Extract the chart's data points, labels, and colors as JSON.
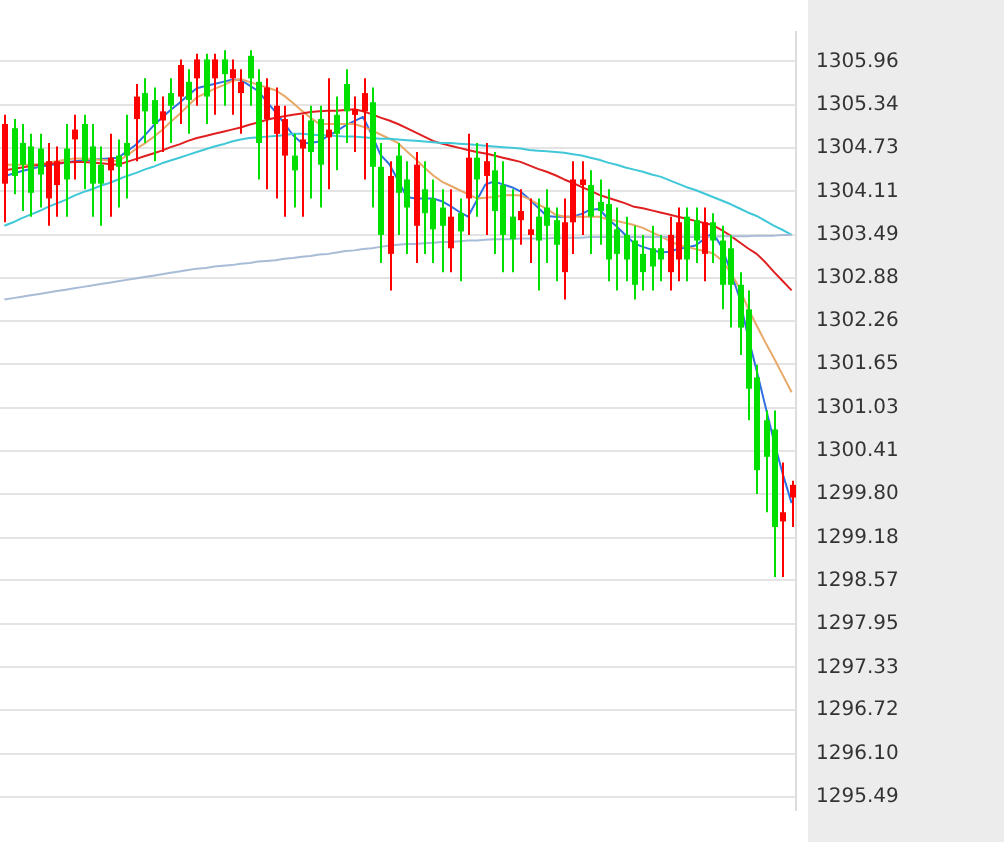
{
  "chart_data": {
    "type": "candlestick",
    "tick_labels": "y",
    "grid": "y",
    "legend": false,
    "ylim": [
      1295.3,
      1306.38
    ],
    "yticks": [
      1295.49,
      {
        "value": 1296.1,
        "label": "1296.10"
      },
      1296.72,
      1297.33,
      1297.95,
      1298.57,
      1299.18,
      {
        "value": 1299.8,
        "label": "1299.80"
      },
      1300.41,
      1301.03,
      1301.65,
      1302.26,
      1302.88,
      1303.49,
      1304.11,
      1304.73,
      1305.34,
      1305.96
    ],
    "categories": [
      null,
      null,
      null,
      null,
      null,
      null,
      null,
      null,
      null,
      null,
      null,
      null,
      null,
      null,
      null,
      null,
      null,
      null,
      null,
      null,
      null,
      null,
      null,
      null,
      null,
      null,
      null,
      null,
      null,
      null,
      null,
      null,
      null,
      null,
      null,
      null,
      null,
      null,
      null,
      null,
      null,
      null,
      null,
      null,
      null,
      null,
      null,
      null,
      null,
      null,
      null,
      null,
      null,
      null,
      null,
      null,
      null,
      null,
      null,
      null,
      null,
      null,
      null,
      null,
      null,
      null,
      null,
      null,
      null,
      null,
      null,
      null,
      null,
      null,
      null,
      null,
      null,
      null,
      null,
      null,
      null,
      null,
      null,
      null,
      null,
      null,
      null,
      null,
      null,
      null,
      null
    ],
    "ohlc": [
      [
        1304.22,
        1305.2,
        1303.67,
        1305.07
      ],
      [
        1305.01,
        1305.14,
        1304.07,
        1304.33
      ],
      [
        1304.8,
        1305.07,
        1303.83,
        1304.49
      ],
      [
        1304.75,
        1304.93,
        1303.75,
        1304.09
      ],
      [
        1304.72,
        1304.93,
        1303.88,
        1304.35
      ],
      [
        1304.01,
        1304.8,
        1303.62,
        1304.54
      ],
      [
        1304.2,
        1304.75,
        1303.75,
        1304.54
      ],
      [
        1304.72,
        1305.07,
        1303.75,
        1304.28
      ],
      [
        1304.85,
        1305.2,
        1304.28,
        1304.99
      ],
      [
        1305.07,
        1305.2,
        1304.14,
        1304.54
      ],
      [
        1304.75,
        1305.07,
        1303.75,
        1304.22
      ],
      [
        1304.49,
        1304.75,
        1303.62,
        1304.22
      ],
      [
        1304.41,
        1304.93,
        1303.75,
        1304.59
      ],
      [
        1304.62,
        1304.85,
        1303.88,
        1304.46
      ],
      [
        1304.8,
        1305.2,
        1304.01,
        1304.62
      ],
      [
        1305.14,
        1305.64,
        1304.54,
        1305.46
      ],
      [
        1305.51,
        1305.72,
        1304.8,
        1305.25
      ],
      [
        1305.41,
        1305.59,
        1304.54,
        1305.07
      ],
      [
        1305.12,
        1305.46,
        1304.67,
        1305.25
      ],
      [
        1305.51,
        1305.72,
        1304.8,
        1305.33
      ],
      [
        1305.46,
        1305.99,
        1305.07,
        1305.91
      ],
      [
        1305.67,
        1305.85,
        1304.93,
        1305.41
      ],
      [
        1305.72,
        1306.07,
        1305.33,
        1305.99
      ],
      [
        1305.99,
        1306.07,
        1305.07,
        1305.46
      ],
      [
        1305.72,
        1306.07,
        1305.2,
        1305.99
      ],
      [
        1305.99,
        1306.12,
        1305.33,
        1305.78
      ],
      [
        1305.72,
        1305.99,
        1305.2,
        1305.85
      ],
      [
        1305.51,
        1305.85,
        1304.93,
        1305.67
      ],
      [
        1306.04,
        1306.12,
        1305.33,
        1305.72
      ],
      [
        1305.67,
        1305.85,
        1304.28,
        1304.8
      ],
      [
        1305.14,
        1305.72,
        1304.14,
        1305.59
      ],
      [
        1304.93,
        1305.59,
        1304.01,
        1305.33
      ],
      [
        1304.62,
        1305.33,
        1303.75,
        1305.14
      ],
      [
        1304.62,
        1304.93,
        1303.88,
        1304.41
      ],
      [
        1304.72,
        1305.2,
        1303.75,
        1304.85
      ],
      [
        1305.12,
        1305.33,
        1304.01,
        1304.67
      ],
      [
        1305.14,
        1305.33,
        1303.88,
        1304.49
      ],
      [
        1304.88,
        1305.72,
        1304.14,
        1304.99
      ],
      [
        1305.2,
        1305.46,
        1304.41,
        1304.93
      ],
      [
        1305.64,
        1305.85,
        1304.8,
        1305.25
      ],
      [
        1305.2,
        1305.46,
        1304.67,
        1305.28
      ],
      [
        1305.25,
        1305.72,
        1304.28,
        1305.51
      ],
      [
        1305.38,
        1305.59,
        1303.88,
        1304.46
      ],
      [
        1304.46,
        1304.8,
        1303.09,
        1303.49
      ],
      [
        1303.22,
        1304.54,
        1302.7,
        1304.33
      ],
      [
        1304.62,
        1304.8,
        1303.49,
        1304.09
      ],
      [
        1304.28,
        1304.54,
        1303.22,
        1303.88
      ],
      [
        1303.62,
        1304.67,
        1303.09,
        1304.49
      ],
      [
        1304.14,
        1304.54,
        1303.22,
        1303.8
      ],
      [
        1304.01,
        1304.28,
        1303.09,
        1303.57
      ],
      [
        1303.88,
        1304.14,
        1302.96,
        1303.62
      ],
      [
        1303.3,
        1304.14,
        1302.96,
        1303.75
      ],
      [
        1303.8,
        1304.01,
        1302.83,
        1303.54
      ],
      [
        1304.01,
        1304.93,
        1303.49,
        1304.59
      ],
      [
        1304.59,
        1304.8,
        1303.75,
        1304.28
      ],
      [
        1304.33,
        1304.8,
        1303.49,
        1304.54
      ],
      [
        1304.41,
        1304.67,
        1303.22,
        1303.83
      ],
      [
        1304.2,
        1304.54,
        1302.96,
        1303.49
      ],
      [
        1303.75,
        1304.14,
        1302.96,
        1303.43
      ],
      [
        1303.7,
        1304.14,
        1303.35,
        1303.83
      ],
      [
        1303.49,
        1304.01,
        1303.09,
        1303.57
      ],
      [
        1303.75,
        1304.01,
        1302.7,
        1303.41
      ],
      [
        1303.88,
        1304.14,
        1303.09,
        1303.62
      ],
      [
        1303.7,
        1303.88,
        1302.83,
        1303.35
      ],
      [
        1302.96,
        1304.01,
        1302.57,
        1303.67
      ],
      [
        1303.67,
        1304.54,
        1303.22,
        1304.28
      ],
      [
        1304.2,
        1304.54,
        1303.49,
        1304.28
      ],
      [
        1304.2,
        1304.41,
        1303.22,
        1303.75
      ],
      [
        1303.96,
        1304.28,
        1303.35,
        1303.83
      ],
      [
        1303.93,
        1304.14,
        1302.83,
        1303.14
      ],
      [
        1303.57,
        1303.88,
        1302.7,
        1303.22
      ],
      [
        1303.49,
        1303.75,
        1302.83,
        1303.14
      ],
      [
        1303.41,
        1303.62,
        1302.57,
        1302.78
      ],
      [
        1303.22,
        1303.49,
        1302.7,
        1302.96
      ],
      [
        1303.3,
        1303.62,
        1302.7,
        1303.04
      ],
      [
        1303.3,
        1303.49,
        1302.83,
        1303.14
      ],
      [
        1302.96,
        1303.75,
        1302.7,
        1303.49
      ],
      [
        1303.14,
        1303.88,
        1302.83,
        1303.67
      ],
      [
        1303.75,
        1303.88,
        1302.83,
        1303.14
      ],
      [
        1303.7,
        1303.88,
        1303.09,
        1303.41
      ],
      [
        1303.22,
        1303.88,
        1302.83,
        1303.67
      ],
      [
        1303.67,
        1303.8,
        1303.09,
        1303.41
      ],
      [
        1303.41,
        1303.62,
        1302.43,
        1302.78
      ],
      [
        1303.3,
        1303.49,
        1302.17,
        1302.78
      ],
      [
        1302.78,
        1302.96,
        1301.78,
        1302.17
      ],
      [
        1302.43,
        1302.7,
        1300.85,
        1301.3
      ],
      [
        1301.46,
        1301.64,
        1299.8,
        1300.14
      ],
      [
        1300.85,
        1300.99,
        1299.54,
        1300.33
      ],
      [
        1300.72,
        1300.99,
        1298.62,
        1299.33
      ],
      [
        1299.41,
        1300.25,
        1298.62,
        1299.54
      ],
      [
        1299.75,
        1299.99,
        1299.33,
        1299.93
      ]
    ],
    "colors": [
      "#ff0000",
      "#00e000",
      "#00e000",
      "#00e000",
      "#00e000",
      "#ff0000",
      "#ff0000",
      "#00e000",
      "#ff0000",
      "#00e000",
      "#00e000",
      "#00e000",
      "#ff0000",
      "#00e000",
      "#00e000",
      "#ff0000",
      "#00e000",
      "#00e000",
      "#ff0000",
      "#00e000",
      "#ff0000",
      "#00e000",
      "#ff0000",
      "#00e000",
      "#ff0000",
      "#00e000",
      "#ff0000",
      "#ff0000",
      "#00e000",
      "#00e000",
      "#ff0000",
      "#ff0000",
      "#ff0000",
      "#00e000",
      "#ff0000",
      "#00e000",
      "#00e000",
      "#ff0000",
      "#00e000",
      "#00e000",
      "#ff0000",
      "#ff0000",
      "#00e000",
      "#00e000",
      "#ff0000",
      "#00e000",
      "#00e000",
      "#ff0000",
      "#00e000",
      "#00e000",
      "#00e000",
      "#ff0000",
      "#00e000",
      "#ff0000",
      "#00e000",
      "#ff0000",
      "#00e000",
      "#00e000",
      "#00e000",
      "#ff0000",
      "#ff0000",
      "#00e000",
      "#00e000",
      "#00e000",
      "#ff0000",
      "#ff0000",
      "#ff0000",
      "#00e000",
      "#00e000",
      "#00e000",
      "#00e000",
      "#00e000",
      "#00e000",
      "#00e000",
      "#00e000",
      "#00e000",
      "#ff0000",
      "#ff0000",
      "#00e000",
      "#00e000",
      "#ff0000",
      "#00e000",
      "#00e000",
      "#00e000",
      "#00e000",
      "#00e000",
      "#00e000",
      "#00e000",
      "#00e000",
      "#ff0000",
      "#ff0000"
    ],
    "series": [
      {
        "type": "line",
        "color": "#a8bcd8",
        "values": [
          1302.57,
          1302.59,
          1302.61,
          1302.63,
          1302.65,
          1302.67,
          1302.69,
          1302.71,
          1302.73,
          1302.75,
          1302.77,
          1302.79,
          1302.81,
          1302.83,
          1302.85,
          1302.87,
          1302.89,
          1302.91,
          1302.93,
          1302.95,
          1302.97,
          1302.99,
          1303.01,
          1303.02,
          1303.04,
          1303.05,
          1303.06,
          1303.08,
          1303.09,
          1303.11,
          1303.12,
          1303.13,
          1303.15,
          1303.16,
          1303.18,
          1303.19,
          1303.21,
          1303.22,
          1303.24,
          1303.26,
          1303.27,
          1303.29,
          1303.3,
          1303.32,
          1303.34,
          1303.35,
          1303.36,
          1303.36,
          1303.37,
          1303.38,
          1303.39,
          1303.39,
          1303.4,
          1303.41,
          1303.41,
          1303.42,
          1303.43,
          1303.43,
          1303.43,
          1303.44,
          1303.44,
          1303.44,
          1303.44,
          1303.45,
          1303.45,
          1303.45,
          1303.45,
          1303.46,
          1303.46,
          1303.46,
          1303.46,
          1303.46,
          1303.46,
          1303.46,
          1303.46,
          1303.46,
          1303.46,
          1303.46,
          1303.46,
          1303.46,
          1303.46,
          1303.46,
          1303.47,
          1303.47,
          1303.47,
          1303.47,
          1303.48,
          1303.48,
          1303.48,
          1303.49,
          1303.49
        ]
      },
      {
        "type": "line",
        "color": "#40c8d8",
        "values": [
          1303.62,
          1303.67,
          1303.73,
          1303.78,
          1303.83,
          1303.89,
          1303.94,
          1303.99,
          1304.05,
          1304.1,
          1304.14,
          1304.19,
          1304.23,
          1304.28,
          1304.33,
          1304.37,
          1304.42,
          1304.46,
          1304.51,
          1304.55,
          1304.59,
          1304.63,
          1304.67,
          1304.71,
          1304.75,
          1304.78,
          1304.82,
          1304.85,
          1304.87,
          1304.88,
          1304.89,
          1304.9,
          1304.91,
          1304.93,
          1304.93,
          1304.92,
          1304.91,
          1304.91,
          1304.9,
          1304.89,
          1304.89,
          1304.88,
          1304.87,
          1304.86,
          1304.86,
          1304.85,
          1304.84,
          1304.83,
          1304.82,
          1304.81,
          1304.8,
          1304.8,
          1304.79,
          1304.78,
          1304.77,
          1304.76,
          1304.75,
          1304.74,
          1304.73,
          1304.72,
          1304.7,
          1304.69,
          1304.68,
          1304.67,
          1304.66,
          1304.64,
          1304.62,
          1304.59,
          1304.56,
          1304.52,
          1304.49,
          1304.45,
          1304.42,
          1304.39,
          1304.35,
          1304.32,
          1304.27,
          1304.22,
          1304.17,
          1304.13,
          1304.08,
          1304.03,
          1303.98,
          1303.93,
          1303.87,
          1303.81,
          1303.76,
          1303.69,
          1303.62,
          1303.56,
          1303.49
        ]
      },
      {
        "type": "line",
        "color": "#e02020",
        "values": [
          1304.41,
          1304.43,
          1304.45,
          1304.47,
          1304.49,
          1304.5,
          1304.51,
          1304.52,
          1304.53,
          1304.53,
          1304.52,
          1304.51,
          1304.5,
          1304.49,
          1304.53,
          1304.57,
          1304.61,
          1304.65,
          1304.69,
          1304.74,
          1304.78,
          1304.83,
          1304.87,
          1304.9,
          1304.93,
          1304.96,
          1304.99,
          1305.02,
          1305.06,
          1305.09,
          1305.13,
          1305.16,
          1305.18,
          1305.2,
          1305.22,
          1305.24,
          1305.25,
          1305.26,
          1305.26,
          1305.27,
          1305.28,
          1305.25,
          1305.21,
          1305.16,
          1305.12,
          1305.07,
          1305.01,
          1304.95,
          1304.89,
          1304.83,
          1304.79,
          1304.76,
          1304.73,
          1304.7,
          1304.67,
          1304.65,
          1304.62,
          1304.59,
          1304.56,
          1304.53,
          1304.48,
          1304.43,
          1304.39,
          1304.34,
          1304.28,
          1304.23,
          1304.17,
          1304.12,
          1304.06,
          1304.02,
          1303.98,
          1303.94,
          1303.89,
          1303.87,
          1303.84,
          1303.81,
          1303.78,
          1303.75,
          1303.72,
          1303.69,
          1303.66,
          1303.63,
          1303.56,
          1303.48,
          1303.39,
          1303.3,
          1303.22,
          1303.1,
          1302.96,
          1302.83,
          1302.7
        ]
      },
      {
        "type": "line",
        "color": "#e8a868",
        "values": [
          1304.49,
          1304.49,
          1304.49,
          1304.49,
          1304.5,
          1304.52,
          1304.54,
          1304.56,
          1304.58,
          1304.58,
          1304.57,
          1304.56,
          1304.55,
          1304.54,
          1304.62,
          1304.71,
          1304.79,
          1304.88,
          1304.98,
          1305.1,
          1305.21,
          1305.33,
          1305.45,
          1305.51,
          1305.57,
          1305.62,
          1305.68,
          1305.71,
          1305.67,
          1305.63,
          1305.59,
          1305.55,
          1305.47,
          1305.37,
          1305.26,
          1305.16,
          1305.07,
          1305.07,
          1305.07,
          1305.07,
          1305.07,
          1305.03,
          1304.98,
          1304.92,
          1304.86,
          1304.8,
          1304.68,
          1304.57,
          1304.45,
          1304.34,
          1304.25,
          1304.19,
          1304.13,
          1304.07,
          1304.01,
          1304.02,
          1304.03,
          1304.05,
          1304.06,
          1304.05,
          1304.0,
          1303.93,
          1303.86,
          1303.78,
          1303.75,
          1303.75,
          1303.75,
          1303.75,
          1303.75,
          1303.71,
          1303.69,
          1303.66,
          1303.63,
          1303.59,
          1303.53,
          1303.47,
          1303.41,
          1303.35,
          1303.32,
          1303.29,
          1303.26,
          1303.23,
          1303.13,
          1302.96,
          1302.74,
          1302.45,
          1302.2,
          1301.96,
          1301.73,
          1301.49,
          1301.25
        ]
      },
      {
        "type": "line",
        "color": "#3070e0",
        "values": [
          1304.33,
          1304.36,
          1304.4,
          1304.43,
          1304.46,
          1304.48,
          1304.5,
          1304.52,
          1304.54,
          1304.55,
          1304.56,
          1304.57,
          1304.58,
          1304.59,
          1304.68,
          1304.77,
          1304.9,
          1305.04,
          1305.16,
          1305.27,
          1305.37,
          1305.48,
          1305.58,
          1305.61,
          1305.64,
          1305.67,
          1305.7,
          1305.7,
          1305.62,
          1305.54,
          1305.39,
          1305.24,
          1305.08,
          1304.91,
          1304.8,
          1304.8,
          1304.82,
          1304.9,
          1304.97,
          1305.05,
          1305.11,
          1305.17,
          1304.92,
          1304.63,
          1304.5,
          1304.27,
          1304.03,
          1304.01,
          1304.01,
          1304.01,
          1303.97,
          1303.9,
          1303.82,
          1303.75,
          1303.98,
          1304.21,
          1304.25,
          1304.21,
          1304.17,
          1304.11,
          1304.0,
          1303.88,
          1303.76,
          1303.75,
          1303.75,
          1303.75,
          1303.79,
          1303.85,
          1303.86,
          1303.72,
          1303.61,
          1303.49,
          1303.37,
          1303.32,
          1303.28,
          1303.24,
          1303.25,
          1303.29,
          1303.31,
          1303.34,
          1303.43,
          1303.52,
          1303.32,
          1302.98,
          1302.61,
          1302.05,
          1301.56,
          1301.05,
          1300.54,
          1300.08,
          1299.67
        ]
      }
    ]
  }
}
